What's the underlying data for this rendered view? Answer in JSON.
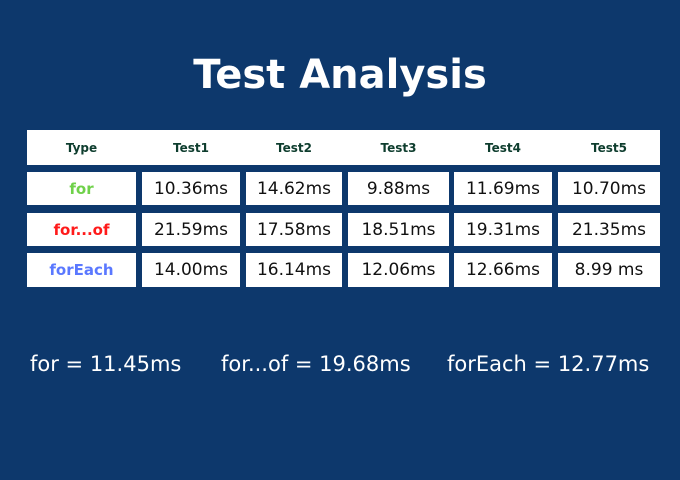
{
  "title": "Test Analysis",
  "table": {
    "headers": [
      "Type",
      "Test1",
      "Test2",
      "Test3",
      "Test4",
      "Test5"
    ],
    "rows": [
      {
        "type": "for",
        "color": "#6fd14a",
        "values": [
          "10.36ms",
          "14.62ms",
          "9.88ms",
          "11.69ms",
          "10.70ms"
        ]
      },
      {
        "type": "for...of",
        "color": "#ff1a1a",
        "values": [
          "21.59ms",
          "17.58ms",
          "18.51ms",
          "19.31ms",
          "21.35ms"
        ]
      },
      {
        "type": "forEach",
        "color": "#5a78ff",
        "values": [
          "14.00ms",
          "16.14ms",
          "12.06ms",
          "12.66ms",
          "8.99 ms"
        ]
      }
    ]
  },
  "summary": {
    "for": "for = 11.45ms",
    "for_of": "for...of = 19.68ms",
    "forEach": "forEach = 12.77ms"
  }
}
